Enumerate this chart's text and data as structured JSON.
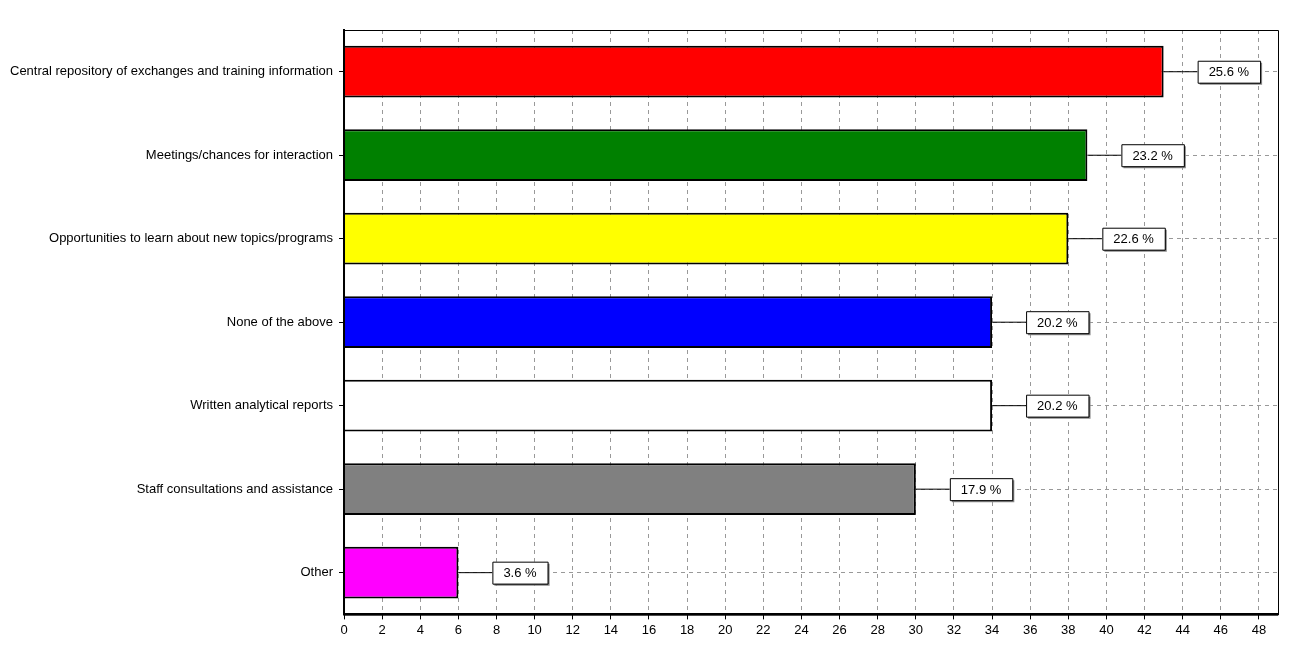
{
  "chart_data": {
    "type": "bar",
    "orientation": "horizontal",
    "categories": [
      "Central repository of exchanges and training information",
      "Meetings/chances for interaction",
      "Opportunities to learn about new topics/programs",
      "None of the above",
      "Written analytical reports",
      "Staff consultations and assistance",
      "Other"
    ],
    "values": [
      43,
      39,
      38,
      34,
      34,
      30,
      6
    ],
    "colors": [
      "#ff0000",
      "#008000",
      "#ffff00",
      "#0000ff",
      "#ffffff",
      "#808080",
      "#ff00ff"
    ],
    "annotations": [
      {
        "text": "25.6 %",
        "x": 43,
        "y": "Central repository of exchanges and training information"
      },
      {
        "text": "23.2 %",
        "x": 39,
        "y": "Meetings/chances for interaction"
      },
      {
        "text": "22.6 %",
        "x": 38,
        "y": "Opportunities to learn about new topics/programs"
      },
      {
        "text": "20.2 %",
        "x": 34,
        "y": "None of the above"
      },
      {
        "text": "20.2 %",
        "x": 34,
        "y": "Written analytical reports"
      },
      {
        "text": "17.9 %",
        "x": 30,
        "y": "Staff consultations and assistance"
      },
      {
        "text": "3.6 %",
        "x": 6,
        "y": "Other"
      }
    ],
    "xlim": [
      0,
      49
    ],
    "xticks": [
      0,
      2,
      4,
      6,
      8,
      10,
      12,
      14,
      16,
      18,
      20,
      22,
      24,
      26,
      28,
      30,
      32,
      34,
      36,
      38,
      40,
      42,
      44,
      46,
      48
    ],
    "grid": true,
    "legend": false
  }
}
